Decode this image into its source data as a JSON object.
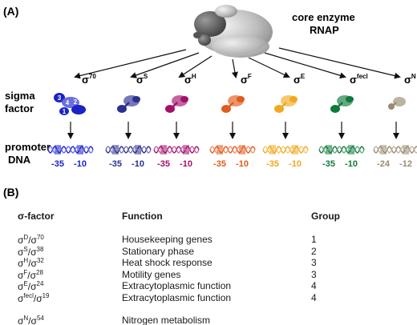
{
  "panelA": {
    "label": "(A)",
    "core_title": "core enzyme",
    "core_sub": "RNAP",
    "sigma_label": [
      "sigma",
      "factor"
    ],
    "promoter_label": [
      "promoter",
      "DNA"
    ],
    "domain_numbers": [
      "3",
      "4",
      "2",
      "1"
    ],
    "factors": [
      {
        "base": "σ",
        "sup": "70",
        "color": "#1a22c8",
        "left": "-35",
        "right": "-10"
      },
      {
        "base": "σ",
        "sup": "S",
        "color": "#2b2f8f",
        "left": "-35",
        "right": "-10"
      },
      {
        "base": "σ",
        "sup": "H",
        "color": "#a3106a",
        "left": "-35",
        "right": "-10"
      },
      {
        "base": "σ",
        "sup": "F",
        "color": "#e05b1c",
        "left": "-35",
        "right": "-10"
      },
      {
        "base": "σ",
        "sup": "E",
        "color": "#f2a81c",
        "left": "-35",
        "right": "-10"
      },
      {
        "base": "σ",
        "sup": "fecl",
        "color": "#0e7a3c",
        "left": "-35",
        "right": "-10"
      },
      {
        "base": "σ",
        "sup": "N",
        "color": "#9a8a72",
        "left": "-24",
        "right": "-12"
      }
    ]
  },
  "panelB": {
    "label": "(B)",
    "headers": {
      "factor": "σ-factor",
      "function": "Function",
      "group": "Group"
    },
    "rows": [
      {
        "s1": "D",
        "s2": "70",
        "function": "Housekeeping genes",
        "group": "1"
      },
      {
        "s1": "S",
        "s2": "38",
        "function": "Stationary phase",
        "group": "2"
      },
      {
        "s1": "H",
        "s2": "32",
        "function": "Heat shock response",
        "group": "3"
      },
      {
        "s1": "F",
        "s2": "28",
        "function": "Motility genes",
        "group": "3"
      },
      {
        "s1": "E",
        "s2": "24",
        "function": "Extracytoplasmic function",
        "group": "4"
      },
      {
        "s1": "fecl",
        "s2": "19",
        "function": "Extracytoplasmic function",
        "group": "4"
      },
      {
        "s1": "N",
        "s2": "54",
        "function": "Nitrogen metabolism",
        "group": ""
      }
    ]
  }
}
